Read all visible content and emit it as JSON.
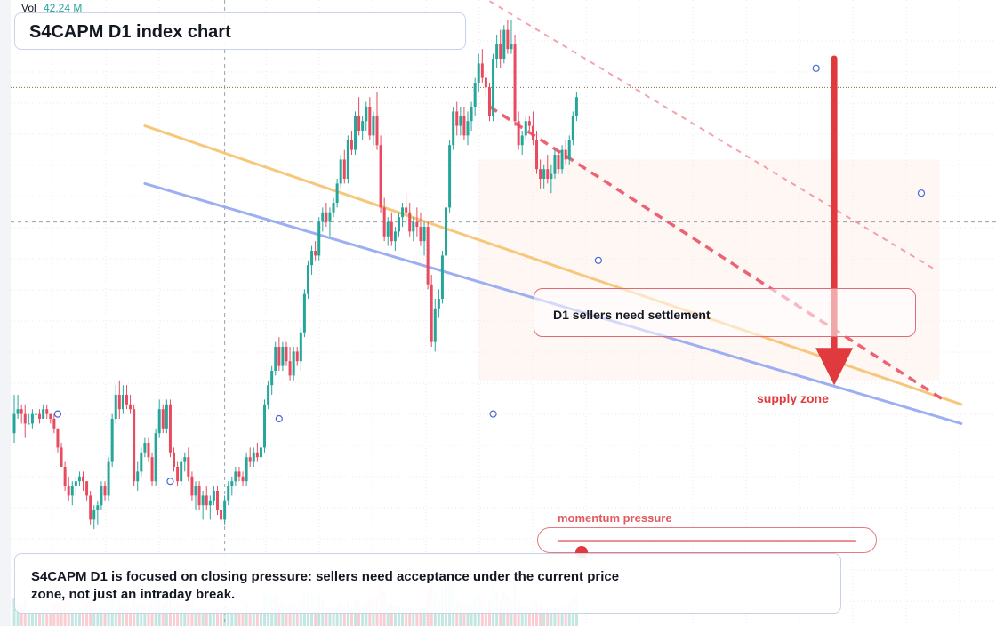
{
  "header": {
    "vol_label": "Vol",
    "vol_value": "42.24 M"
  },
  "title": "S4CAPM D1 index chart",
  "mid_callout": "D1 sellers need settlement",
  "zone_label": "supply zone",
  "momentum": {
    "label": "momentum pressure",
    "level": 0.08
  },
  "note": "S4CAPM D1 is focused on closing pressure: sellers need acceptance under the current price zone, not just an intraday break.",
  "colors": {
    "up": "#26a69a",
    "down": "#e84a5f",
    "accent": "#e03a3e",
    "orange": "#f7c26e",
    "blue": "#93a7f2"
  },
  "chart_data": {
    "type": "candlestick",
    "title": "S4CAPM D1 index chart",
    "volume_label": "42.24 M",
    "ylim": [
      0,
      100
    ],
    "reference_level": 84,
    "crosshair": {
      "bar": 58,
      "price": 56
    },
    "candles": [
      [
        12.0,
        20.0,
        10.0,
        16.0,
        10
      ],
      [
        16.0,
        20.0,
        15.0,
        17.0,
        8
      ],
      [
        17.0,
        18.0,
        14.0,
        16.0,
        7
      ],
      [
        16.0,
        18.0,
        11.0,
        14.0,
        9
      ],
      [
        14.0,
        16.0,
        14.0,
        14.0,
        6
      ],
      [
        14.0,
        17.0,
        13.0,
        16.0,
        6
      ],
      [
        16.0,
        18.0,
        15.0,
        16.0,
        5
      ],
      [
        16.0,
        17.0,
        14.0,
        15.0,
        5
      ],
      [
        15.0,
        18.0,
        15.0,
        17.0,
        7
      ],
      [
        17.0,
        18.0,
        15.0,
        16.0,
        6
      ],
      [
        16.0,
        16.0,
        14.0,
        15.0,
        5
      ],
      [
        15.0,
        16.0,
        12.0,
        13.0,
        8
      ],
      [
        13.0,
        13.0,
        8.0,
        9.0,
        10
      ],
      [
        9.0,
        10.0,
        5.0,
        5.0,
        11
      ],
      [
        5.0,
        6.0,
        0.0,
        1.0,
        12
      ],
      [
        1.0,
        3.0,
        -2.0,
        -1.0,
        9
      ],
      [
        -1.0,
        2.0,
        -3.0,
        1.0,
        7
      ],
      [
        1.0,
        3.0,
        -1.0,
        2.0,
        6
      ],
      [
        2.0,
        4.0,
        1.0,
        3.0,
        6
      ],
      [
        3.0,
        4.0,
        0.0,
        2.0,
        5
      ],
      [
        2.0,
        2.0,
        -2.0,
        -1.0,
        8
      ],
      [
        -1.0,
        0.0,
        -7.0,
        -6.0,
        11
      ],
      [
        -6.0,
        -3.0,
        -8.0,
        -4.0,
        6
      ],
      [
        -4.0,
        -2.0,
        -7.0,
        -3.0,
        5
      ],
      [
        -3.0,
        2.0,
        -4.0,
        1.0,
        7
      ],
      [
        1.0,
        2.0,
        -2.0,
        -1.0,
        6
      ],
      [
        -1.0,
        7.0,
        -2.0,
        6.0,
        9
      ],
      [
        6.0,
        16.0,
        5.0,
        15.0,
        13
      ],
      [
        15.0,
        22.0,
        14.0,
        20.0,
        12
      ],
      [
        20.0,
        23.0,
        15.0,
        17.0,
        9
      ],
      [
        17.0,
        22.0,
        16.0,
        20.0,
        8
      ],
      [
        20.0,
        22.0,
        17.0,
        18.0,
        7
      ],
      [
        18.0,
        20.0,
        16.0,
        17.0,
        6
      ],
      [
        17.0,
        18.0,
        1.0,
        2.0,
        14
      ],
      [
        2.0,
        6.0,
        0.0,
        4.0,
        8
      ],
      [
        4.0,
        9.0,
        3.0,
        8.0,
        8
      ],
      [
        8.0,
        11.0,
        7.0,
        10.0,
        7
      ],
      [
        10.0,
        11.0,
        6.0,
        7.0,
        7
      ],
      [
        7.0,
        8.0,
        1.0,
        2.0,
        9
      ],
      [
        2.0,
        13.0,
        1.0,
        12.0,
        12
      ],
      [
        12.0,
        19.0,
        11.0,
        17.0,
        11
      ],
      [
        17.0,
        18.0,
        12.0,
        13.0,
        8
      ],
      [
        13.0,
        19.0,
        12.0,
        18.0,
        9
      ],
      [
        18.0,
        19.0,
        7.0,
        8.0,
        12
      ],
      [
        8.0,
        9.0,
        4.0,
        5.0,
        8
      ],
      [
        5.0,
        6.0,
        1.0,
        2.0,
        8
      ],
      [
        2.0,
        7.0,
        1.0,
        6.0,
        7
      ],
      [
        6.0,
        8.0,
        4.0,
        7.0,
        6
      ],
      [
        7.0,
        9.0,
        2.0,
        3.0,
        9
      ],
      [
        3.0,
        4.0,
        -2.0,
        -1.0,
        8
      ],
      [
        -1.0,
        2.0,
        -4.0,
        1.0,
        6
      ],
      [
        1.0,
        2.0,
        -4.0,
        -3.0,
        6
      ],
      [
        -3.0,
        0.0,
        -6.0,
        -1.0,
        5
      ],
      [
        -1.0,
        1.0,
        -4.0,
        -3.0,
        5
      ],
      [
        -3.0,
        -1.0,
        -6.0,
        -2.0,
        5
      ],
      [
        -2.0,
        1.0,
        -3.0,
        0.0,
        5
      ],
      [
        0.0,
        1.0,
        -5.0,
        -4.0,
        6
      ],
      [
        -4.0,
        -2.0,
        -7.0,
        -6.0,
        6
      ],
      [
        -6.0,
        -1.0,
        -7.0,
        -2.0,
        7
      ],
      [
        -2.0,
        2.0,
        -3.0,
        1.0,
        6
      ],
      [
        1.0,
        3.0,
        -1.0,
        2.0,
        5
      ],
      [
        2.0,
        5.0,
        1.0,
        4.0,
        6
      ],
      [
        4.0,
        5.0,
        2.0,
        3.0,
        5
      ],
      [
        3.0,
        4.0,
        1.0,
        2.0,
        5
      ],
      [
        2.0,
        8.0,
        1.0,
        7.0,
        8
      ],
      [
        7.0,
        9.0,
        5.0,
        6.0,
        6
      ],
      [
        6.0,
        9.0,
        5.0,
        8.0,
        6
      ],
      [
        8.0,
        10.0,
        6.0,
        7.0,
        5
      ],
      [
        7.0,
        10.0,
        5.0,
        9.0,
        6
      ],
      [
        9.0,
        19.0,
        8.0,
        18.0,
        12
      ],
      [
        18.0,
        23.0,
        17.0,
        22.0,
        11
      ],
      [
        22.0,
        26.0,
        20.0,
        25.0,
        10
      ],
      [
        25.0,
        31.0,
        24.0,
        30.0,
        11
      ],
      [
        30.0,
        32.0,
        25.0,
        26.0,
        8
      ],
      [
        26.0,
        31.0,
        25.0,
        30.0,
        8
      ],
      [
        30.0,
        31.0,
        26.0,
        27.0,
        6
      ],
      [
        27.0,
        30.0,
        23.0,
        24.0,
        7
      ],
      [
        24.0,
        30.0,
        23.0,
        29.0,
        8
      ],
      [
        29.0,
        30.0,
        26.0,
        27.0,
        6
      ],
      [
        27.0,
        34.0,
        25.0,
        33.0,
        9
      ],
      [
        33.0,
        42.0,
        32.0,
        41.0,
        12
      ],
      [
        41.0,
        48.0,
        40.0,
        47.0,
        13
      ],
      [
        47.0,
        51.0,
        45.0,
        50.0,
        11
      ],
      [
        50.0,
        52.0,
        48.0,
        49.0,
        7
      ],
      [
        49.0,
        57.0,
        48.0,
        56.0,
        11
      ],
      [
        56.0,
        59.0,
        54.0,
        58.0,
        9
      ],
      [
        58.0,
        60.0,
        55.0,
        56.0,
        7
      ],
      [
        56.0,
        59.0,
        53.0,
        58.0,
        7
      ],
      [
        58.0,
        61.0,
        57.0,
        60.0,
        6
      ],
      [
        60.0,
        65.0,
        59.0,
        64.0,
        8
      ],
      [
        64.0,
        70.0,
        63.0,
        69.0,
        9
      ],
      [
        69.0,
        71.0,
        64.0,
        65.0,
        7
      ],
      [
        65.0,
        74.0,
        64.0,
        73.0,
        10
      ],
      [
        73.0,
        75.0,
        70.0,
        71.0,
        7
      ],
      [
        71.0,
        79.0,
        70.0,
        78.0,
        10
      ],
      [
        78.0,
        82.0,
        74.0,
        75.0,
        9
      ],
      [
        75.0,
        78.0,
        73.0,
        77.0,
        7
      ],
      [
        77.0,
        81.0,
        75.0,
        80.0,
        8
      ],
      [
        80.0,
        82.0,
        73.0,
        74.0,
        10
      ],
      [
        74.0,
        79.0,
        72.0,
        78.0,
        8
      ],
      [
        78.0,
        83.0,
        71.0,
        72.0,
        11
      ],
      [
        72.0,
        74.0,
        58.0,
        59.0,
        14
      ],
      [
        59.0,
        61.0,
        52.0,
        53.0,
        12
      ],
      [
        53.0,
        57.0,
        51.0,
        56.0,
        8
      ],
      [
        56.0,
        58.0,
        51.0,
        52.0,
        8
      ],
      [
        52.0,
        55.0,
        50.0,
        54.0,
        7
      ],
      [
        54.0,
        58.0,
        53.0,
        57.0,
        7
      ],
      [
        57.0,
        60.0,
        55.0,
        59.0,
        7
      ],
      [
        59.0,
        62.0,
        56.0,
        58.0,
        6
      ],
      [
        58.0,
        60.0,
        53.0,
        54.0,
        7
      ],
      [
        54.0,
        57.0,
        52.0,
        56.0,
        6
      ],
      [
        56.0,
        59.0,
        53.0,
        55.0,
        6
      ],
      [
        55.0,
        58.0,
        51.0,
        52.0,
        7
      ],
      [
        52.0,
        56.0,
        49.0,
        55.0,
        7
      ],
      [
        55.0,
        56.0,
        42.0,
        43.0,
        13
      ],
      [
        43.0,
        45.0,
        30.0,
        31.0,
        16
      ],
      [
        31.0,
        40.0,
        29.0,
        38.0,
        12
      ],
      [
        38.0,
        42.0,
        36.0,
        40.0,
        9
      ],
      [
        40.0,
        50.0,
        39.0,
        49.0,
        13
      ],
      [
        49.0,
        60.0,
        48.0,
        59.0,
        15
      ],
      [
        59.0,
        73.0,
        58.0,
        72.0,
        17
      ],
      [
        72.0,
        80.0,
        71.0,
        79.0,
        15
      ],
      [
        79.0,
        81.0,
        74.0,
        76.0,
        9
      ],
      [
        76.0,
        80.0,
        74.0,
        78.0,
        8
      ],
      [
        78.0,
        80.0,
        73.0,
        74.0,
        8
      ],
      [
        74.0,
        79.0,
        72.0,
        77.0,
        8
      ],
      [
        77.0,
        81.0,
        75.0,
        80.0,
        8
      ],
      [
        80.0,
        86.0,
        78.0,
        85.0,
        11
      ],
      [
        85.0,
        91.0,
        83.0,
        89.0,
        12
      ],
      [
        89.0,
        92.0,
        85.0,
        86.0,
        9
      ],
      [
        86.0,
        87.0,
        82.0,
        84.0,
        8
      ],
      [
        84.0,
        85.0,
        77.0,
        78.0,
        9
      ],
      [
        78.0,
        91.0,
        77.0,
        90.0,
        14
      ],
      [
        90.0,
        95.0,
        88.0,
        93.0,
        12
      ],
      [
        93.0,
        96.0,
        88.0,
        90.0,
        10
      ],
      [
        90.0,
        97.0,
        89.0,
        96.0,
        12
      ],
      [
        96.0,
        98.0,
        91.0,
        92.0,
        11
      ],
      [
        92.0,
        98.0,
        91.0,
        93.0,
        9
      ],
      [
        93.0,
        95.0,
        76.0,
        77.0,
        16
      ],
      [
        77.0,
        79.0,
        71.0,
        72.0,
        10
      ],
      [
        72.0,
        75.0,
        70.0,
        74.0,
        7
      ],
      [
        74.0,
        78.0,
        73.0,
        77.0,
        7
      ],
      [
        77.0,
        78.0,
        75.0,
        76.0,
        6
      ],
      [
        76.0,
        79.0,
        72.0,
        73.0,
        7
      ],
      [
        73.0,
        75.0,
        66.0,
        67.0,
        9
      ],
      [
        67.0,
        69.0,
        63.0,
        65.0,
        8
      ],
      [
        65.0,
        68.0,
        63.0,
        67.0,
        6
      ],
      [
        67.0,
        70.0,
        64.0,
        65.0,
        6
      ],
      [
        65.0,
        68.0,
        62.0,
        66.0,
        6
      ],
      [
        66.0,
        71.0,
        65.0,
        70.0,
        7
      ],
      [
        70.0,
        71.0,
        66.0,
        67.0,
        6
      ],
      [
        67.0,
        72.0,
        66.0,
        71.0,
        7
      ],
      [
        71.0,
        73.0,
        68.0,
        69.0,
        6
      ],
      [
        69.0,
        74.0,
        68.0,
        73.0,
        8
      ],
      [
        73.0,
        79.0,
        72.0,
        78.0,
        10
      ],
      [
        78.0,
        83.0,
        77.0,
        82.0,
        11
      ]
    ],
    "moving_averages": [
      {
        "color": "#f7c26e",
        "start_bar": 36,
        "start_price": 76,
        "end_bar": 261,
        "end_price": 18
      },
      {
        "color": "#93a7f2",
        "start_bar": 36,
        "start_price": 64,
        "end_bar": 261,
        "end_price": 14
      }
    ],
    "trendlines": [
      {
        "color": "#e84a5f",
        "start_bar": 131,
        "start_price": 102,
        "end_bar": 254,
        "end_price": 46,
        "style": "dashed-light"
      },
      {
        "color": "#e84a5f",
        "start_bar": 131,
        "start_price": 80,
        "end_bar": 256,
        "end_price": 19,
        "style": "dashed"
      }
    ],
    "markers": [
      {
        "bar": 12,
        "price": 16
      },
      {
        "bar": 43,
        "price": 2
      },
      {
        "bar": 73,
        "price": 15
      },
      {
        "bar": 132,
        "price": 16
      },
      {
        "bar": 161,
        "price": 48
      },
      {
        "bar": 221,
        "price": 88
      },
      {
        "bar": 250,
        "price": 62
      }
    ],
    "zone": {
      "label": "supply zone",
      "from_bar": 128,
      "to_bar": 255,
      "price_low": 23,
      "price_high": 69
    },
    "arrow": {
      "bar": 226,
      "from_price": 90,
      "to_price": 22
    }
  }
}
